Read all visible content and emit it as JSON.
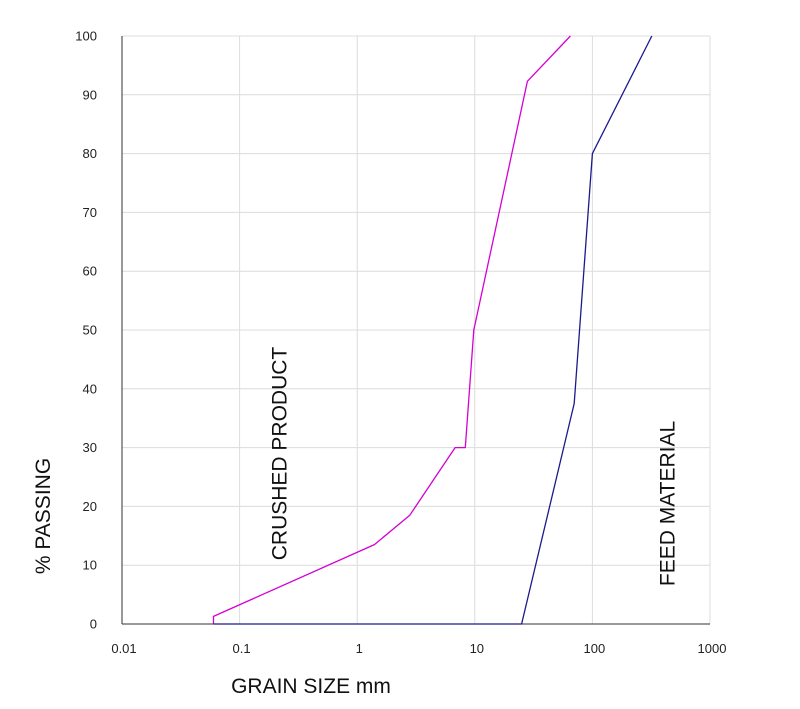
{
  "chart_data": {
    "type": "line",
    "title": "",
    "xlabel": "GRAIN SIZE mm",
    "ylabel": "% PASSING",
    "x_scale": "log",
    "xlim": [
      0.01,
      1000
    ],
    "ylim": [
      0,
      100
    ],
    "x_ticks": [
      0.01,
      0.1,
      1,
      10,
      100,
      1000
    ],
    "x_tick_labels": [
      "0.01",
      "0.1",
      "1",
      "10",
      "100",
      "1000"
    ],
    "y_ticks": [
      0,
      10,
      20,
      30,
      40,
      50,
      60,
      70,
      80,
      90,
      100
    ],
    "y_tick_labels": [
      "0",
      "10",
      "20",
      "30",
      "40",
      "50",
      "60",
      "70",
      "80",
      "90",
      "100"
    ],
    "grid": true,
    "legend": "none",
    "series": [
      {
        "color": "#d400d4",
        "points": [
          [
            0.06,
            0
          ],
          [
            0.06,
            1.3
          ],
          [
            1.4,
            13.5
          ],
          [
            2.8,
            18.5
          ],
          [
            6.8,
            30
          ],
          [
            8.3,
            30
          ],
          [
            9.8,
            50
          ],
          [
            28,
            92.3
          ],
          [
            65,
            100
          ]
        ]
      },
      {
        "color": "#1a1a8c",
        "points": [
          [
            0.06,
            0
          ],
          [
            25,
            0
          ],
          [
            70,
            37.5
          ],
          [
            100,
            80
          ],
          [
            320,
            100
          ]
        ]
      }
    ],
    "annotations": [
      {
        "text": "CRUSHED PRODUCT",
        "x": 0.25,
        "y": 29,
        "rotation": -90
      },
      {
        "text": "FEED MATERIAL",
        "x": 500,
        "y": 20.5,
        "rotation": -90
      }
    ]
  }
}
